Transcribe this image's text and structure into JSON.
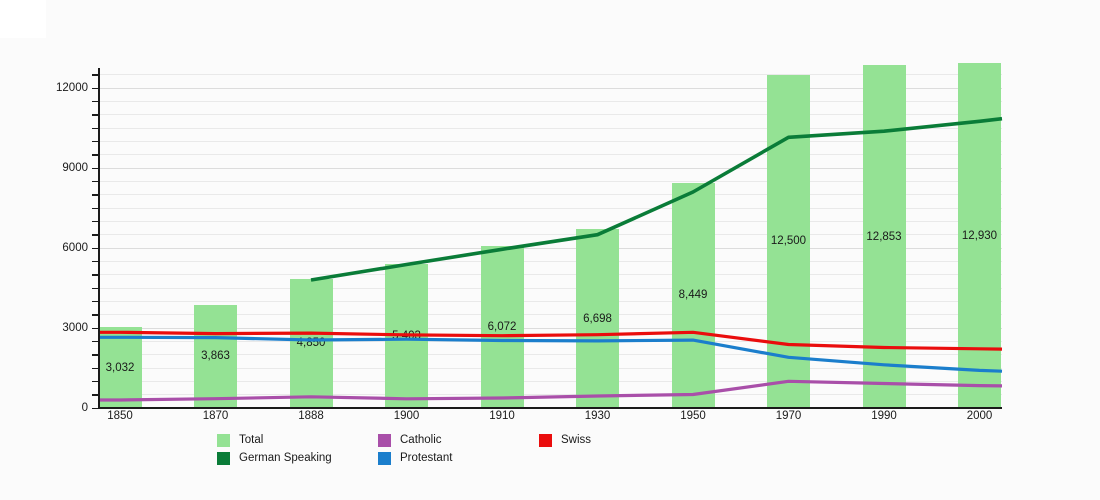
{
  "background": {
    "page_color": "#fbfbfb",
    "corner_patch_color": "#ffffff"
  },
  "chart_data": {
    "type": "bar",
    "title": "",
    "xlabel": "",
    "ylabel": "",
    "categories": [
      "1850",
      "1870",
      "1888",
      "1900",
      "1910",
      "1930",
      "1950",
      "1970",
      "1990",
      "2000"
    ],
    "bars": {
      "name": "Total",
      "color": "#94e294",
      "values": [
        3032,
        3863,
        4850,
        5403,
        6072,
        6698,
        8449,
        12500,
        12853,
        12930
      ],
      "value_labels": [
        "3,032",
        "3,863",
        "4,850",
        "5,403",
        "6,072",
        "6,698",
        "8,449",
        "12,500",
        "12,853",
        "12,930"
      ]
    },
    "line_series": [
      {
        "name": "German Speaking",
        "color": "#0a7c38",
        "stroke_width": 3.6,
        "values": [
          null,
          null,
          4800,
          5380,
          5950,
          6500,
          8100,
          10150,
          10380,
          10750
        ],
        "extend_right": 10850
      },
      {
        "name": "Catholic",
        "color": "#a94fa9",
        "stroke_width": 3.2,
        "values": [
          300,
          350,
          420,
          345,
          375,
          450,
          505,
          1000,
          920,
          840
        ],
        "extend_left": 300,
        "extend_right": 830
      },
      {
        "name": "Protestant",
        "color": "#1b7ecc",
        "stroke_width": 3.2,
        "values": [
          2650,
          2640,
          2550,
          2580,
          2530,
          2515,
          2545,
          1900,
          1620,
          1410
        ],
        "extend_left": 2650,
        "extend_right": 1380
      },
      {
        "name": "Swiss",
        "color": "#ea0d0d",
        "stroke_width": 3.2,
        "values": [
          2840,
          2790,
          2810,
          2740,
          2710,
          2750,
          2840,
          2380,
          2270,
          2220
        ],
        "extend_left": 2840,
        "extend_right": 2210
      }
    ],
    "ylim": [
      0,
      12750
    ],
    "y_major_ticks": [
      0,
      3000,
      6000,
      9000,
      12000
    ],
    "y_minor_step": 500,
    "grid": "horizontal",
    "legend_position": "bottom",
    "legend": [
      {
        "label": "Total",
        "color": "#94e294"
      },
      {
        "label": "German Speaking",
        "color": "#0a7c38"
      },
      {
        "label": "Catholic",
        "color": "#a94fa9"
      },
      {
        "label": "Protestant",
        "color": "#1b7ecc"
      },
      {
        "label": "Swiss",
        "color": "#ea0d0d"
      }
    ]
  }
}
